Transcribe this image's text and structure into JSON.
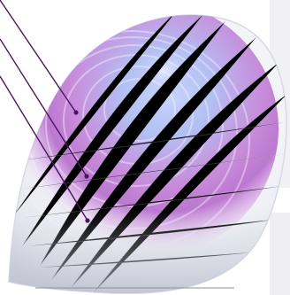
{
  "figure": {
    "subject": "contact-lens",
    "zones": [
      {
        "name": "center-zone",
        "color": "#a9b9ec"
      },
      {
        "name": "middle-zone",
        "color": "#c88ad8"
      },
      {
        "name": "outer-zone",
        "color": "#a45aba"
      }
    ],
    "colors": {
      "lens_base": "#f2f3f7",
      "lens_edge": "#d7d9e4",
      "pointer": "#4a1660",
      "panel": "#f1f1f3",
      "baseline": "#8e8ea0"
    }
  }
}
